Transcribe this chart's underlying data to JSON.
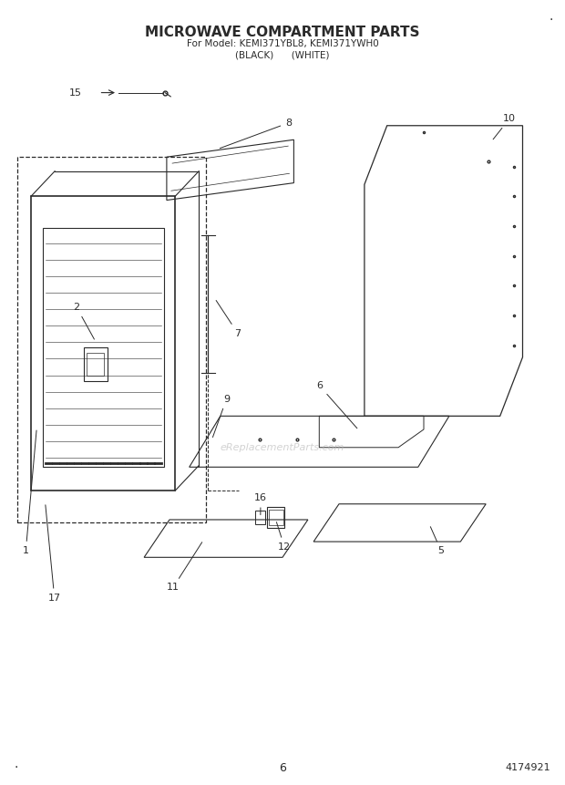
{
  "title": "MICROWAVE COMPARTMENT PARTS",
  "subtitle1": "For Model: KEMI371YBL8, KEMI371YWH0",
  "subtitle2": "(BLACK)      (WHITE)",
  "page_num": "6",
  "doc_num": "4174921",
  "watermark": "eReplacementParts.com",
  "bg_color": "#ffffff",
  "line_color": "#2a2a2a"
}
